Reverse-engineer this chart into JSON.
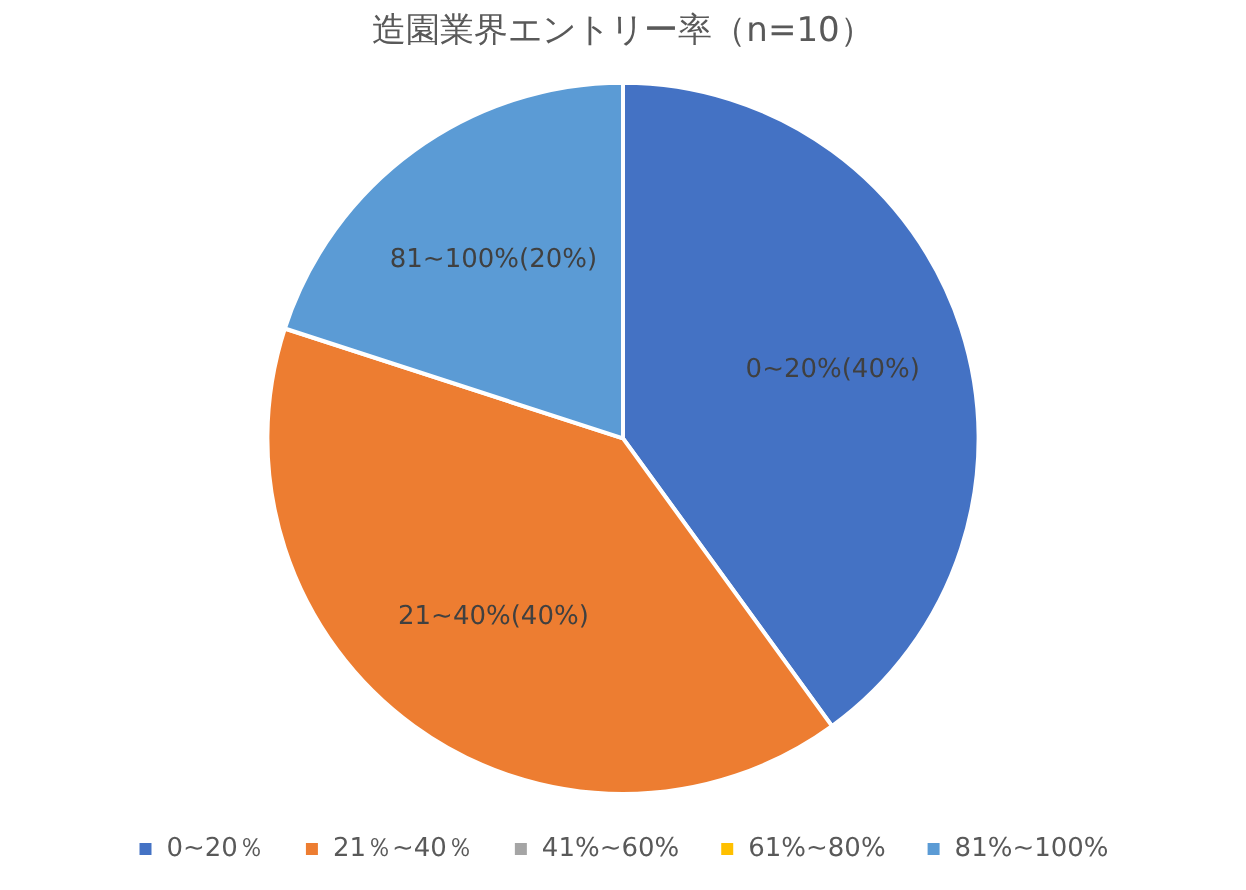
{
  "chart_data": {
    "type": "pie",
    "title": "造園業界エントリー率（n=10）",
    "categories": [
      "0~20％",
      "21％~40％",
      "41%~60%",
      "61%~80%",
      "81%~100%"
    ],
    "values": [
      40,
      40,
      0,
      0,
      20
    ],
    "colors": [
      "#4472c4",
      "#ed7d31",
      "#a5a5a5",
      "#ffc000",
      "#5b9bd5"
    ],
    "value_labels": [
      "0~20%(40%)",
      "21~40%(40%)",
      null,
      null,
      "81~100%(20%)"
    ],
    "legend": "bottom"
  }
}
